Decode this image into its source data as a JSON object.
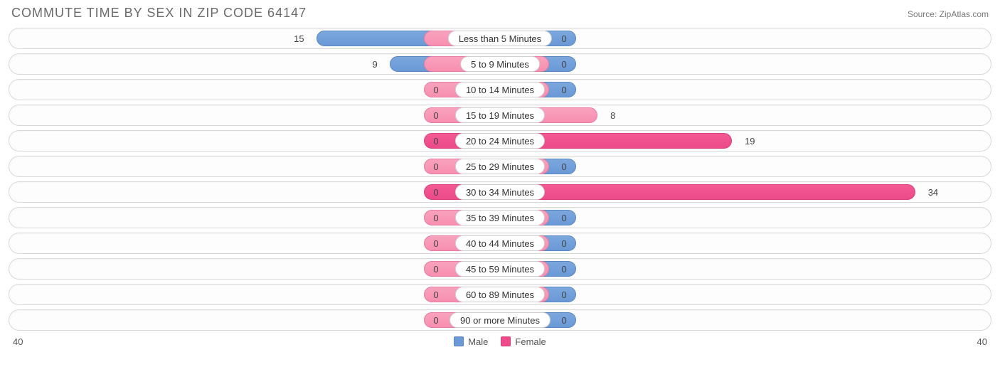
{
  "title": "COMMUTE TIME BY SEX IN ZIP CODE 64147",
  "source": "Source: ZipAtlas.com",
  "axis_max": 40,
  "axis_left_label": "40",
  "axis_right_label": "40",
  "legend": {
    "male": "Male",
    "female": "Female"
  },
  "colors": {
    "male_fill": "#6a99d6",
    "male_border": "#5a86c3",
    "female_fill": "#f78fb0",
    "female_border": "#e87ba0",
    "female_highlight_fill": "#ec4a89",
    "female_highlight_border": "#d93f7c",
    "row_border": "#d9d9d9",
    "text": "#444444",
    "title_color": "#6b6b6b",
    "background": "#ffffff"
  },
  "min_bar_pct": 5.0,
  "label_half_pct": 7.8,
  "label_gap_pct": 1.0,
  "rows": [
    {
      "category": "Less than 5 Minutes",
      "male": 15,
      "female": 0
    },
    {
      "category": "5 to 9 Minutes",
      "male": 9,
      "female": 0
    },
    {
      "category": "10 to 14 Minutes",
      "male": 0,
      "female": 0
    },
    {
      "category": "15 to 19 Minutes",
      "male": 0,
      "female": 8
    },
    {
      "category": "20 to 24 Minutes",
      "male": 0,
      "female": 19,
      "highlight": true
    },
    {
      "category": "25 to 29 Minutes",
      "male": 0,
      "female": 0
    },
    {
      "category": "30 to 34 Minutes",
      "male": 0,
      "female": 34,
      "highlight": true
    },
    {
      "category": "35 to 39 Minutes",
      "male": 0,
      "female": 0
    },
    {
      "category": "40 to 44 Minutes",
      "male": 0,
      "female": 0
    },
    {
      "category": "45 to 59 Minutes",
      "male": 0,
      "female": 0
    },
    {
      "category": "60 to 89 Minutes",
      "male": 0,
      "female": 0
    },
    {
      "category": "90 or more Minutes",
      "male": 0,
      "female": 0
    }
  ]
}
